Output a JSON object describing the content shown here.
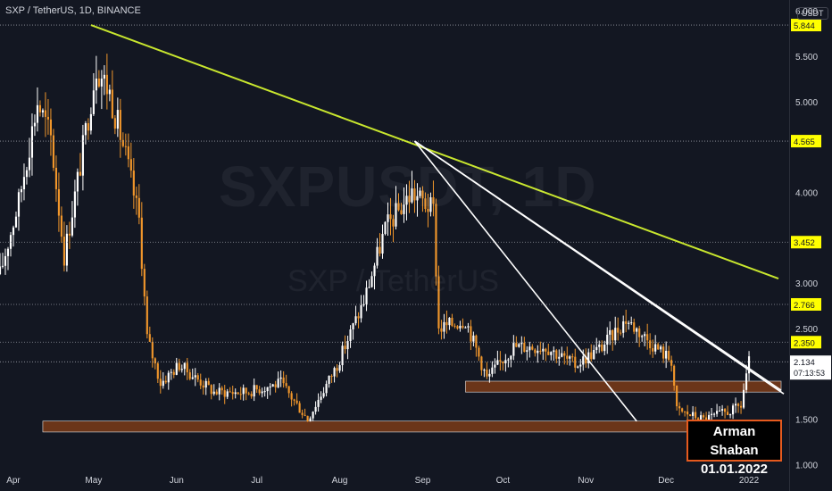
{
  "header": {
    "title": "SXP / TetherUS, 1D, BINANCE"
  },
  "watermark": {
    "symbol": "SXPUSDT, 1D",
    "pair": "SXP / TetherUS"
  },
  "currency": "USDT",
  "author": {
    "name": "Arman Shaban",
    "date": "01.01.2022"
  },
  "countdown": "07:13:53",
  "chart_data": {
    "type": "candlestick",
    "symbol": "SXPUSDT",
    "interval": "1D",
    "exchange": "BINANCE",
    "ylim": [
      0.71,
      6.12
    ],
    "y_ticks": [
      1.0,
      1.5,
      2.0,
      2.5,
      3.0,
      3.5,
      4.0,
      4.5,
      5.0,
      5.5,
      6.0
    ],
    "y_tick_labels": [
      "1.000",
      "1.500",
      "",
      "2.500",
      "3.000",
      "",
      "4.000",
      "",
      "5.000",
      "5.500",
      "6.000"
    ],
    "x_labels": [
      {
        "label": "Apr",
        "date": "2021-04-01"
      },
      {
        "label": "May",
        "date": "2021-05-01"
      },
      {
        "label": "Jun",
        "date": "2021-06-01"
      },
      {
        "label": "Jul",
        "date": "2021-07-01"
      },
      {
        "label": "Aug",
        "date": "2021-08-01"
      },
      {
        "label": "Sep",
        "date": "2021-09-01"
      },
      {
        "label": "Oct",
        "date": "2021-10-01"
      },
      {
        "label": "Nov",
        "date": "2021-11-01"
      },
      {
        "label": "Dec",
        "date": "2021-12-01"
      },
      {
        "label": "2022",
        "date": "2022-01-01"
      }
    ],
    "price_levels": [
      {
        "label": "5.844",
        "value": 5.844,
        "color": "#ffff00"
      },
      {
        "label": "4.565",
        "value": 4.565,
        "color": "#ffff00"
      },
      {
        "label": "3.452",
        "value": 3.452,
        "color": "#ffff00"
      },
      {
        "label": "2.766",
        "value": 2.766,
        "color": "#ffff00"
      },
      {
        "label": "2.350",
        "value": 2.35,
        "color": "#ffff00"
      }
    ],
    "current_price": {
      "label": "2.134",
      "value": 2.134
    },
    "closes": [
      {
        "date": "2021-03-27",
        "value": 3.1
      },
      {
        "date": "2021-04-03",
        "value": 3.9
      },
      {
        "date": "2021-04-10",
        "value": 5.0
      },
      {
        "date": "2021-04-15",
        "value": 4.6
      },
      {
        "date": "2021-04-20",
        "value": 3.3
      },
      {
        "date": "2021-04-26",
        "value": 4.3
      },
      {
        "date": "2021-05-02",
        "value": 5.4
      },
      {
        "date": "2021-05-07",
        "value": 5.1
      },
      {
        "date": "2021-05-13",
        "value": 4.4
      },
      {
        "date": "2021-05-18",
        "value": 3.7
      },
      {
        "date": "2021-05-21",
        "value": 2.4
      },
      {
        "date": "2021-05-26",
        "value": 1.9
      },
      {
        "date": "2021-06-02",
        "value": 2.1
      },
      {
        "date": "2021-06-15",
        "value": 1.8
      },
      {
        "date": "2021-06-27",
        "value": 1.8
      },
      {
        "date": "2021-07-10",
        "value": 1.9
      },
      {
        "date": "2021-07-20",
        "value": 1.5
      },
      {
        "date": "2021-07-31",
        "value": 2.1
      },
      {
        "date": "2021-08-10",
        "value": 2.8
      },
      {
        "date": "2021-08-18",
        "value": 3.6
      },
      {
        "date": "2021-08-28",
        "value": 4.0
      },
      {
        "date": "2021-09-05",
        "value": 3.8
      },
      {
        "date": "2021-09-07",
        "value": 2.5
      },
      {
        "date": "2021-09-17",
        "value": 2.6
      },
      {
        "date": "2021-09-25",
        "value": 1.95
      },
      {
        "date": "2021-10-05",
        "value": 2.3
      },
      {
        "date": "2021-10-17",
        "value": 2.3
      },
      {
        "date": "2021-10-28",
        "value": 2.1
      },
      {
        "date": "2021-11-07",
        "value": 2.3
      },
      {
        "date": "2021-11-16",
        "value": 2.6
      },
      {
        "date": "2021-11-27",
        "value": 2.3
      },
      {
        "date": "2021-12-03",
        "value": 2.15
      },
      {
        "date": "2021-12-05",
        "value": 1.6
      },
      {
        "date": "2021-12-15",
        "value": 1.5
      },
      {
        "date": "2021-12-26",
        "value": 1.6
      },
      {
        "date": "2021-12-29",
        "value": 1.65
      },
      {
        "date": "2021-12-31",
        "value": 2.0
      },
      {
        "date": "2022-01-01",
        "value": 2.134
      }
    ],
    "trendlines": [
      {
        "name": "major-trendline",
        "color": "#c8e62e",
        "from": {
          "date": "2021-04-30",
          "value": 5.844
        },
        "to": {
          "date": "2022-01-12",
          "value": 3.05
        }
      },
      {
        "name": "steep-trendline",
        "color": "#ffffff",
        "from": {
          "date": "2021-08-29",
          "value": 4.565
        },
        "to": {
          "date": "2021-11-20",
          "value": 1.48
        }
      },
      {
        "name": "mid-trendline",
        "color": "#ffffff",
        "from": {
          "date": "2021-08-29",
          "value": 4.565
        },
        "to": {
          "date": "2022-01-13",
          "value": 1.82
        }
      },
      {
        "name": "upper-trendline",
        "color": "#ffffff",
        "from": {
          "date": "2021-08-29",
          "value": 4.565
        },
        "to": {
          "date": "2022-01-14",
          "value": 1.78
        }
      }
    ],
    "zones": [
      {
        "name": "support-zone-upper",
        "from_date": "2021-09-17",
        "to_date": "2022-01-13",
        "low": 1.8,
        "high": 1.92,
        "color": "#6b3519"
      },
      {
        "name": "support-zone-lower",
        "from_date": "2021-04-12",
        "to_date": "2022-01-13",
        "low": 1.36,
        "high": 1.48,
        "color": "#6b3519"
      }
    ],
    "grid": false
  }
}
